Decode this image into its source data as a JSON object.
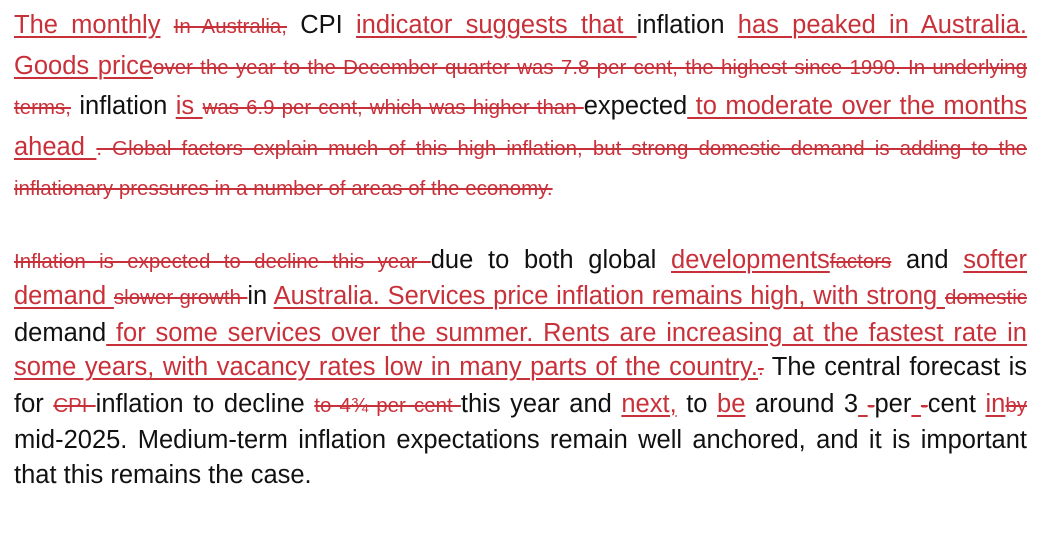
{
  "document": {
    "paragraphs": [
      {
        "segments": [
          {
            "type": "insert",
            "text": "The monthly"
          },
          {
            "type": "plain",
            "text": " "
          },
          {
            "type": "delete",
            "text": "In Australia,",
            "small": true
          },
          {
            "type": "plain",
            "text": " CPI "
          },
          {
            "type": "insert",
            "text": "indicator suggests that "
          },
          {
            "type": "plain",
            "text": "inflation "
          },
          {
            "type": "insert",
            "text": "has peaked in Australia. Goods price"
          },
          {
            "type": "delete",
            "text": "over the year to the December quarter was 7.8 per cent, the highest since 1990. In underlying terms,",
            "small": true
          },
          {
            "type": "plain",
            "text": " inflation "
          },
          {
            "type": "insert",
            "text": "is "
          },
          {
            "type": "delete",
            "text": "was 6.9 per cent, which was higher than ",
            "small": true
          },
          {
            "type": "plain",
            "text": "expected"
          },
          {
            "type": "insert",
            "text": " to moderate over the months ahead "
          },
          {
            "type": "delete",
            "text": ". Global factors explain much of this high inflation, but strong domestic demand is adding to the inflationary pressures in a number of areas of the economy.",
            "small": true
          }
        ]
      },
      {
        "segments": [
          {
            "type": "delete",
            "text": "Inflation is expected to decline this year ",
            "small": true
          },
          {
            "type": "plain",
            "text": "due to both global "
          },
          {
            "type": "insert",
            "text": "developments"
          },
          {
            "type": "delete",
            "text": "factors",
            "small": true
          },
          {
            "type": "plain",
            "text": " and "
          },
          {
            "type": "insert",
            "text": "softer demand "
          },
          {
            "type": "plain",
            "text": " "
          },
          {
            "type": "delete",
            "text": "slower growth ",
            "small": true
          },
          {
            "type": "plain",
            "text": "in "
          },
          {
            "type": "insert",
            "text": "Australia. Services price inflation remains high, with strong "
          },
          {
            "type": "delete",
            "text": "domestic ",
            "small": true
          },
          {
            "type": "plain",
            "text": "demand"
          },
          {
            "type": "insert",
            "text": " for some services over the summer. Rents are increasing at the fastest rate in some years, with vacancy rates low in many parts of the country."
          },
          {
            "type": "delete",
            "text": ".",
            "small": true
          },
          {
            "type": "plain",
            "text": " The central forecast is for "
          },
          {
            "type": "delete",
            "text": "CPI ",
            "small": true
          },
          {
            "type": "plain",
            "text": "inflation to decline "
          },
          {
            "type": "delete",
            "text": "to 4¾ per cent ",
            "small": true
          },
          {
            "type": "plain",
            "text": "this year and "
          },
          {
            "type": "insert",
            "text": "next,"
          },
          {
            "type": "plain",
            "text": " to "
          },
          {
            "type": "insert",
            "text": "be"
          },
          {
            "type": "plain",
            "text": " around 3"
          },
          {
            "type": "insert",
            "text": " "
          },
          {
            "type": "delete",
            "text": "-",
            "small": true
          },
          {
            "type": "plain",
            "text": "per"
          },
          {
            "type": "insert",
            "text": " "
          },
          {
            "type": "delete",
            "text": "-",
            "small": true
          },
          {
            "type": "plain",
            "text": "cent "
          },
          {
            "type": "insert",
            "text": "in"
          },
          {
            "type": "delete",
            "text": "by",
            "small": true
          },
          {
            "type": "plain",
            "text": " mid-2025. Medium-term inflation expectations remain well anchored, and it is important that this remains the case."
          }
        ]
      }
    ]
  },
  "colors": {
    "revision": "#c8313a",
    "text": "#111111",
    "background": "#ffffff"
  }
}
